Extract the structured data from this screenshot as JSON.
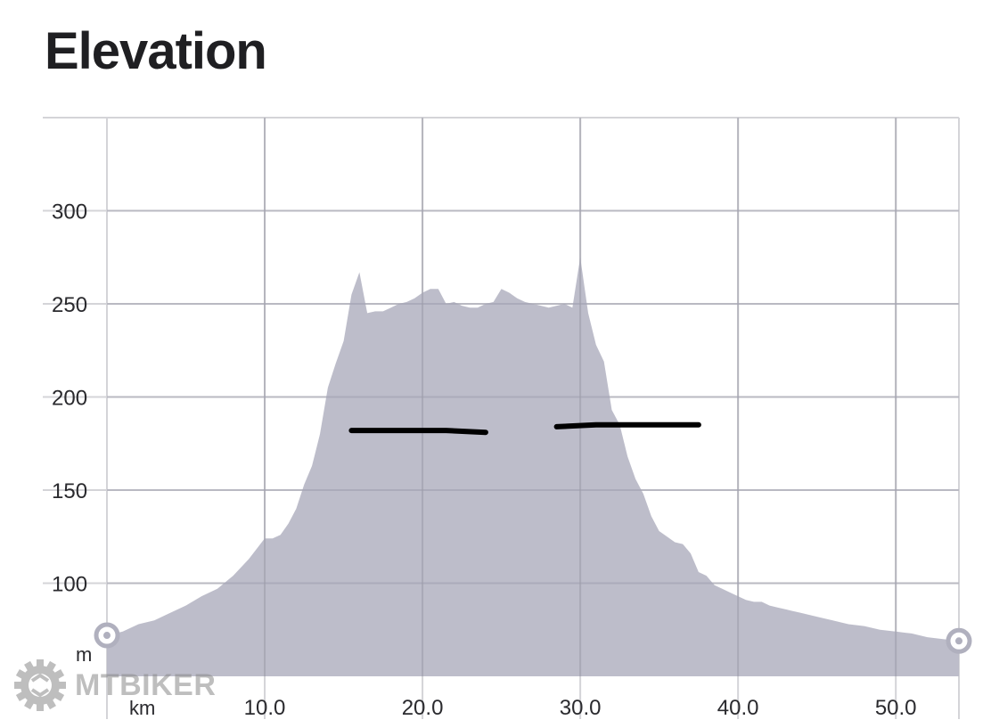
{
  "title": "Elevation",
  "watermark": "MTBIKER",
  "colors": {
    "area_fill": "#b9b9c7",
    "grid": "#d4d4d8",
    "annotation": "#000000",
    "text": "#1f1f22"
  },
  "chart_data": {
    "type": "area",
    "xlim": [
      0,
      54
    ],
    "ylim": [
      50,
      350
    ],
    "x_unit": "km",
    "y_unit": "m",
    "x_ticks": [
      {
        "value": 10,
        "label": "10.0"
      },
      {
        "value": 20,
        "label": "20.0"
      },
      {
        "value": 30,
        "label": "30.0"
      },
      {
        "value": 40,
        "label": "40.0"
      },
      {
        "value": 50,
        "label": "50.0"
      }
    ],
    "y_ticks": [
      {
        "value": 100,
        "label": "100"
      },
      {
        "value": 150,
        "label": "150"
      },
      {
        "value": 200,
        "label": "200"
      },
      {
        "value": 250,
        "label": "250"
      },
      {
        "value": 300,
        "label": "300"
      }
    ],
    "grid": true,
    "x": [
      0,
      1,
      2,
      3,
      4,
      5,
      6,
      7,
      8,
      9,
      10,
      10.5,
      11,
      11.5,
      12,
      12.5,
      13,
      13.5,
      14,
      14.5,
      15,
      15.5,
      16,
      16.5,
      17,
      17.5,
      18,
      18.5,
      19,
      19.5,
      20,
      20.5,
      21,
      21.5,
      22,
      22.5,
      23,
      23.5,
      24,
      24.5,
      25,
      25.5,
      26,
      26.5,
      27,
      27.5,
      28,
      28.5,
      29,
      29.5,
      30,
      30.5,
      31,
      31.5,
      32,
      32.5,
      33,
      33.5,
      34,
      34.5,
      35,
      35.5,
      36,
      36.5,
      37,
      37.5,
      38,
      38.5,
      39,
      39.5,
      40,
      40.5,
      41,
      41.5,
      42,
      42.5,
      43,
      44,
      45,
      46,
      47,
      48,
      49,
      50,
      51,
      52,
      53,
      54
    ],
    "y": [
      72,
      74,
      78,
      80,
      84,
      88,
      93,
      97,
      104,
      113,
      124,
      124,
      126,
      132,
      140,
      153,
      163,
      180,
      205,
      218,
      230,
      255,
      267,
      245,
      246,
      246,
      248,
      250,
      251,
      253,
      256,
      258,
      258,
      250,
      251,
      249,
      248,
      248,
      250,
      251,
      258,
      256,
      253,
      251,
      250,
      249,
      248,
      249,
      250,
      248,
      275,
      245,
      228,
      219,
      193,
      185,
      168,
      156,
      148,
      136,
      128,
      125,
      122,
      121,
      116,
      106,
      104,
      99,
      97,
      95,
      93,
      91,
      90,
      90,
      88,
      87,
      86,
      84,
      82,
      80,
      78,
      77,
      75,
      74,
      73,
      71,
      70,
      69
    ],
    "annotation_strokes": [
      {
        "points": [
          [
            15.5,
            182
          ],
          [
            19.5,
            182
          ],
          [
            21.5,
            182
          ],
          [
            24,
            181
          ]
        ]
      },
      {
        "points": [
          [
            28.5,
            184
          ],
          [
            31,
            185
          ],
          [
            37.5,
            185
          ]
        ]
      }
    ],
    "endpoints": [
      {
        "x": 0,
        "y": 72
      },
      {
        "x": 54,
        "y": 69
      }
    ]
  }
}
